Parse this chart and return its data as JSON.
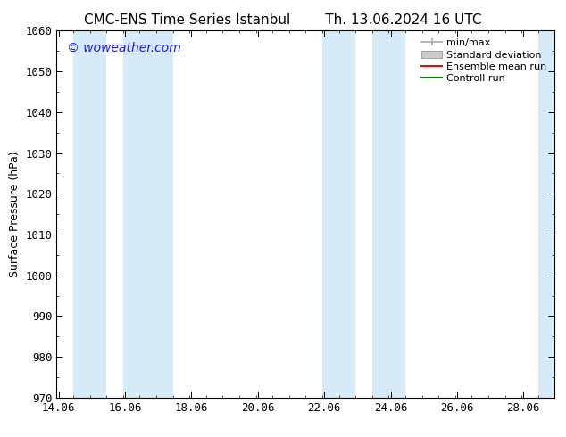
{
  "title_left": "CMC-ENS Time Series Istanbul",
  "title_right": "Th. 13.06.2024 16 UTC",
  "ylabel": "Surface Pressure (hPa)",
  "ylim": [
    970,
    1060
  ],
  "yticks": [
    970,
    980,
    990,
    1000,
    1010,
    1020,
    1030,
    1040,
    1050,
    1060
  ],
  "xlim_start": 14.0,
  "xlim_end": 29.0,
  "xtick_vals": [
    14.06,
    16.06,
    18.06,
    20.06,
    22.06,
    24.06,
    26.06,
    28.06
  ],
  "xlabel_labels": [
    "14.06",
    "16.06",
    "18.06",
    "20.06",
    "22.06",
    "24.06",
    "26.06",
    "28.06"
  ],
  "shaded_bands": [
    {
      "x_start": 14.5,
      "x_end": 15.5
    },
    {
      "x_start": 16.0,
      "x_end": 17.5
    },
    {
      "x_start": 22.0,
      "x_end": 23.0
    },
    {
      "x_start": 23.5,
      "x_end": 24.5
    },
    {
      "x_start": 28.5,
      "x_end": 29.0
    }
  ],
  "band_color": "#d6eaf8",
  "watermark": "© woweather.com",
  "watermark_color": "#1a1aff",
  "background_color": "#ffffff",
  "legend_items": [
    {
      "label": "min/max",
      "color": "#aaaaaa",
      "style": "minmax"
    },
    {
      "label": "Standard deviation",
      "color": "#cccccc",
      "style": "fill"
    },
    {
      "label": "Ensemble mean run",
      "color": "#ff0000",
      "style": "line"
    },
    {
      "label": "Controll run",
      "color": "#008000",
      "style": "line"
    }
  ],
  "title_fontsize": 11,
  "axis_fontsize": 9,
  "watermark_fontsize": 10,
  "legend_fontsize": 8
}
